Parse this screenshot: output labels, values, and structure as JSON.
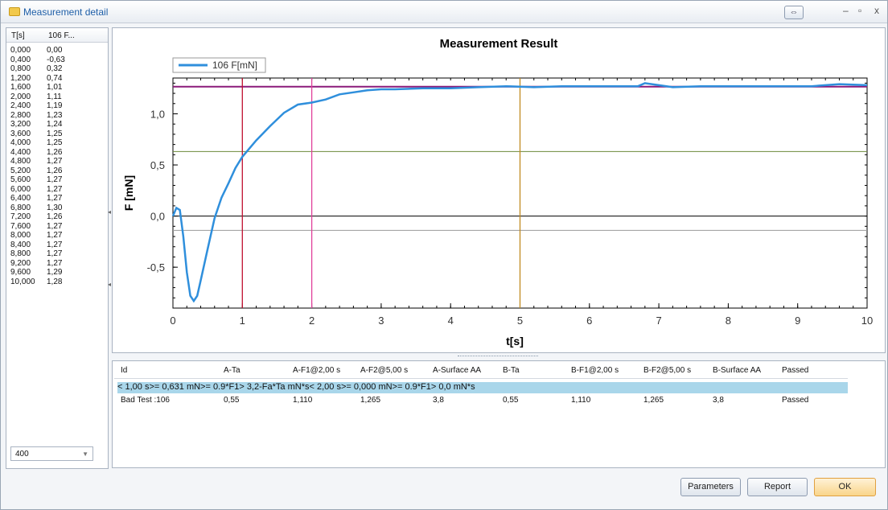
{
  "window": {
    "title": "Measurement detail",
    "restore_icon": "restore-arrows-icon"
  },
  "table": {
    "headers": [
      "T[s]",
      "106 F..."
    ],
    "rows": [
      [
        "0,000",
        "0,00"
      ],
      [
        "0,400",
        "-0,63"
      ],
      [
        "0,800",
        "0,32"
      ],
      [
        "1,200",
        "0,74"
      ],
      [
        "1,600",
        "1,01"
      ],
      [
        "2,000",
        "1,11"
      ],
      [
        "2,400",
        "1,19"
      ],
      [
        "2,800",
        "1,23"
      ],
      [
        "3,200",
        "1,24"
      ],
      [
        "3,600",
        "1,25"
      ],
      [
        "4,000",
        "1,25"
      ],
      [
        "4,400",
        "1,26"
      ],
      [
        "4,800",
        "1,27"
      ],
      [
        "5,200",
        "1,26"
      ],
      [
        "5,600",
        "1,27"
      ],
      [
        "6,000",
        "1,27"
      ],
      [
        "6,400",
        "1,27"
      ],
      [
        "6,800",
        "1,30"
      ],
      [
        "7,200",
        "1,26"
      ],
      [
        "7,600",
        "1,27"
      ],
      [
        "8,000",
        "1,27"
      ],
      [
        "8,400",
        "1,27"
      ],
      [
        "8,800",
        "1,27"
      ],
      [
        "9,200",
        "1,27"
      ],
      [
        "9,600",
        "1,29"
      ],
      [
        "10,000",
        "1,28"
      ]
    ]
  },
  "combo": {
    "value": "400"
  },
  "chart_data": {
    "type": "line",
    "title": "Measurement Result",
    "xlabel": "t[s]",
    "ylabel": "F [mN]",
    "xlim": [
      0,
      10
    ],
    "ylim": [
      -0.9,
      1.35
    ],
    "x_ticks": [
      "0",
      "1",
      "2",
      "3",
      "4",
      "5",
      "6",
      "7",
      "8",
      "9",
      "10"
    ],
    "y_ticks": [
      "-0,5",
      "0,0",
      "0,5",
      "1,0"
    ],
    "legend": "top-left",
    "series": [
      {
        "name": "106 F[mN]",
        "color": "#2f8fdc",
        "points": [
          [
            0.0,
            0.0
          ],
          [
            0.05,
            0.08
          ],
          [
            0.1,
            0.06
          ],
          [
            0.15,
            -0.2
          ],
          [
            0.2,
            -0.55
          ],
          [
            0.25,
            -0.78
          ],
          [
            0.3,
            -0.83
          ],
          [
            0.35,
            -0.78
          ],
          [
            0.4,
            -0.63
          ],
          [
            0.5,
            -0.32
          ],
          [
            0.6,
            -0.02
          ],
          [
            0.7,
            0.18
          ],
          [
            0.8,
            0.32
          ],
          [
            0.9,
            0.47
          ],
          [
            1.0,
            0.58
          ],
          [
            1.2,
            0.74
          ],
          [
            1.4,
            0.88
          ],
          [
            1.6,
            1.01
          ],
          [
            1.8,
            1.09
          ],
          [
            2.0,
            1.11
          ],
          [
            2.2,
            1.14
          ],
          [
            2.4,
            1.19
          ],
          [
            2.6,
            1.21
          ],
          [
            2.8,
            1.23
          ],
          [
            3.0,
            1.24
          ],
          [
            3.2,
            1.24
          ],
          [
            3.6,
            1.25
          ],
          [
            4.0,
            1.25
          ],
          [
            4.4,
            1.26
          ],
          [
            4.8,
            1.27
          ],
          [
            5.2,
            1.26
          ],
          [
            5.6,
            1.27
          ],
          [
            6.0,
            1.27
          ],
          [
            6.4,
            1.27
          ],
          [
            6.7,
            1.27
          ],
          [
            6.8,
            1.3
          ],
          [
            7.0,
            1.28
          ],
          [
            7.2,
            1.26
          ],
          [
            7.6,
            1.27
          ],
          [
            8.0,
            1.27
          ],
          [
            8.4,
            1.27
          ],
          [
            8.8,
            1.27
          ],
          [
            9.2,
            1.27
          ],
          [
            9.6,
            1.29
          ],
          [
            10.0,
            1.28
          ]
        ]
      }
    ],
    "reference_lines": [
      {
        "orientation": "horizontal",
        "value": 1.265,
        "color": "#8b1a7a"
      },
      {
        "orientation": "horizontal",
        "value": 0.631,
        "color": "#6b8a3a"
      },
      {
        "orientation": "horizontal",
        "value": 0.0,
        "color": "#000000"
      },
      {
        "orientation": "horizontal",
        "value": -0.14,
        "color": "#9a9a9a"
      },
      {
        "orientation": "vertical",
        "value": 1.0,
        "color": "#c0102f"
      },
      {
        "orientation": "vertical",
        "value": 2.0,
        "color": "#e0409a"
      },
      {
        "orientation": "vertical",
        "value": 5.0,
        "color": "#c08a20"
      }
    ]
  },
  "results": {
    "headers": [
      "Id",
      "A-Ta",
      "A-F1@2,00 s",
      "A-F2@5,00 s",
      "A-Surface AA",
      "B-Ta",
      "B-F1@2,00 s",
      "B-F2@5,00 s",
      "B-Surface AA",
      "Passed"
    ],
    "criteria": [
      "",
      "< 1,00 s",
      ">= 0,631 mN",
      ">= 0.9*F1",
      "> 3,2-Fa*Ta mN*s",
      "< 2,00 s",
      ">= 0,000 mN",
      ">= 0.9*F1",
      "> 0,0 mN*s",
      ""
    ],
    "rows": [
      [
        "Bad Test :106",
        "0,55",
        "1,110",
        "1,265",
        "3,8",
        "0,55",
        "1,110",
        "1,265",
        "3,8",
        "Passed"
      ]
    ]
  },
  "buttons": {
    "parameters": "Parameters",
    "report": "Report",
    "ok": "OK"
  }
}
